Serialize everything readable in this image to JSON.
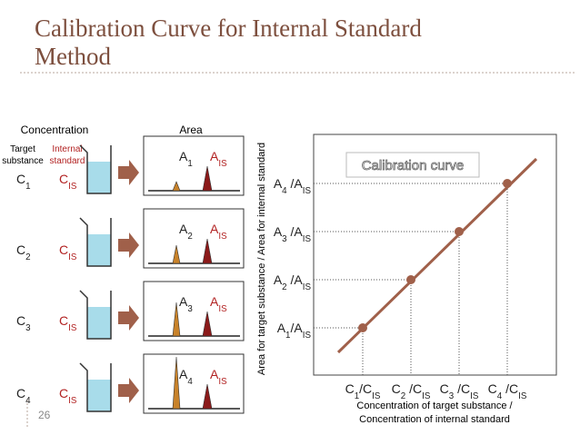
{
  "title_lines": [
    "Calibration Curve for Internal Standard",
    "Method"
  ],
  "page_number": "26",
  "headings": {
    "concentration": "Concentration",
    "area": "Area",
    "target": [
      "Target",
      "substance"
    ],
    "internal": [
      "Internal",
      "standard"
    ]
  },
  "rows": [
    {
      "conc": [
        {
          "text": "C"
        },
        {
          "sub": "1"
        }
      ],
      "is_conc": [
        {
          "text": "C"
        },
        {
          "sub": "IS"
        }
      ],
      "area": [
        {
          "text": "A"
        },
        {
          "sub": "1"
        }
      ],
      "is_area": [
        {
          "text": "A"
        },
        {
          "sub": "IS"
        }
      ]
    },
    {
      "conc": [
        {
          "text": "C"
        },
        {
          "sub": "2"
        }
      ],
      "is_conc": [
        {
          "text": "C"
        },
        {
          "sub": "IS"
        }
      ],
      "area": [
        {
          "text": "A"
        },
        {
          "sub": "2"
        }
      ],
      "is_area": [
        {
          "text": "A"
        },
        {
          "sub": "IS"
        }
      ]
    },
    {
      "conc": [
        {
          "text": "C"
        },
        {
          "sub": "3"
        }
      ],
      "is_conc": [
        {
          "text": "C"
        },
        {
          "sub": "IS"
        }
      ],
      "area": [
        {
          "text": "A"
        },
        {
          "sub": "3"
        }
      ],
      "is_area": [
        {
          "text": "A"
        },
        {
          "sub": "IS"
        }
      ]
    },
    {
      "conc": [
        {
          "text": "C"
        },
        {
          "sub": "4"
        }
      ],
      "is_conc": [
        {
          "text": "C"
        },
        {
          "sub": "IS"
        }
      ],
      "area": [
        {
          "text": "A"
        },
        {
          "sub": "4"
        }
      ],
      "is_area": [
        {
          "text": "A"
        },
        {
          "sub": "IS"
        }
      ]
    }
  ],
  "chart": {
    "y_axis_title": "Area for target substance / Area for internal standard",
    "x_axis_title": [
      "Concentration of target substance /",
      "Concentration of internal standard"
    ],
    "legend": "Calibration curve",
    "y_labels": [
      [
        {
          "text": "A"
        },
        {
          "sub": "1"
        },
        {
          "text": "/A"
        },
        {
          "sub": "IS"
        }
      ],
      [
        {
          "text": "A"
        },
        {
          "sub": "2"
        },
        {
          "text": " /A"
        },
        {
          "sub": "IS"
        }
      ],
      [
        {
          "text": "A"
        },
        {
          "sub": "3"
        },
        {
          "text": " /A"
        },
        {
          "sub": "IS"
        }
      ],
      [
        {
          "text": "A"
        },
        {
          "sub": "4"
        },
        {
          "text": " /A"
        },
        {
          "sub": "IS"
        }
      ]
    ],
    "x_labels": [
      [
        {
          "text": "C"
        },
        {
          "sub": "1"
        },
        {
          "text": "/C"
        },
        {
          "sub": "IS"
        }
      ],
      [
        {
          "text": "C"
        },
        {
          "sub": "2"
        },
        {
          "text": " /C"
        },
        {
          "sub": "IS"
        }
      ],
      [
        {
          "text": "C"
        },
        {
          "sub": "3"
        },
        {
          "text": " /C"
        },
        {
          "sub": "IS"
        }
      ],
      [
        {
          "text": "C"
        },
        {
          "sub": "4"
        },
        {
          "text": " /C"
        },
        {
          "sub": "IS"
        }
      ]
    ]
  }
}
